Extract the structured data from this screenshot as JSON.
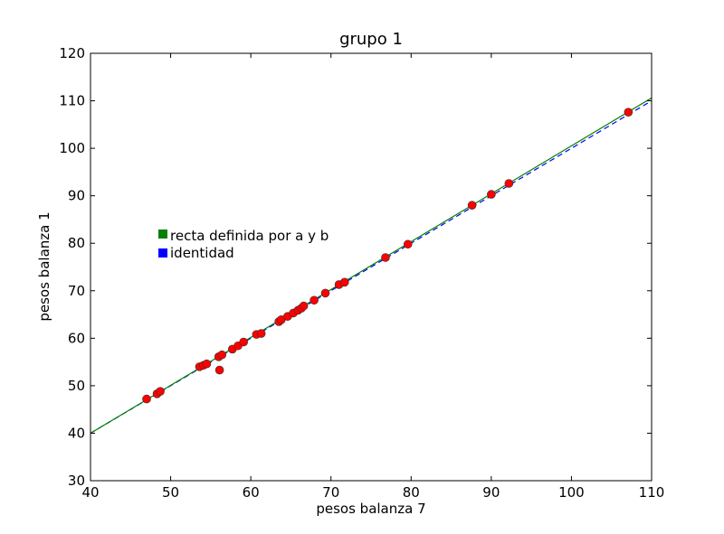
{
  "chart_data": {
    "type": "scatter",
    "title": "grupo 1",
    "xlabel": "pesos balanza 7",
    "ylabel": "pesos balanza 1",
    "xlim": [
      40,
      110
    ],
    "ylim": [
      30,
      120
    ],
    "xticks": [
      40,
      50,
      60,
      70,
      80,
      90,
      100,
      110
    ],
    "yticks": [
      30,
      40,
      50,
      60,
      70,
      80,
      90,
      100,
      110,
      120
    ],
    "grid": false,
    "legend_position": "center-left",
    "legend": [
      {
        "label": "recta definida por a y b",
        "color": "#008000"
      },
      {
        "label": "identidad",
        "color": "#0000ff"
      }
    ],
    "fit_line": {
      "x": [
        40,
        110
      ],
      "y": [
        40.0,
        110.6
      ],
      "color": "#008000",
      "style": "solid"
    },
    "identity_line": {
      "x": [
        40,
        110
      ],
      "y": [
        40,
        110
      ],
      "color": "#0000ff",
      "style": "dashed"
    },
    "points": {
      "color": "#ff0000",
      "x": [
        47.0,
        48.3,
        48.7,
        53.6,
        54.1,
        54.5,
        56.0,
        56.4,
        56.1,
        57.7,
        58.4,
        59.1,
        60.7,
        61.3,
        63.5,
        63.8,
        64.6,
        65.3,
        65.9,
        66.3,
        66.6,
        67.9,
        69.3,
        71.0,
        71.7,
        76.8,
        79.6,
        87.6,
        90.0,
        92.2,
        107.1
      ],
      "y": [
        47.2,
        48.3,
        48.8,
        54.0,
        54.3,
        54.6,
        56.1,
        56.5,
        53.3,
        57.7,
        58.4,
        59.2,
        60.8,
        61.0,
        63.5,
        63.9,
        64.6,
        65.3,
        65.9,
        66.3,
        66.8,
        68.0,
        69.5,
        71.3,
        71.8,
        77.0,
        79.8,
        88.0,
        90.3,
        92.6,
        107.6
      ]
    }
  }
}
